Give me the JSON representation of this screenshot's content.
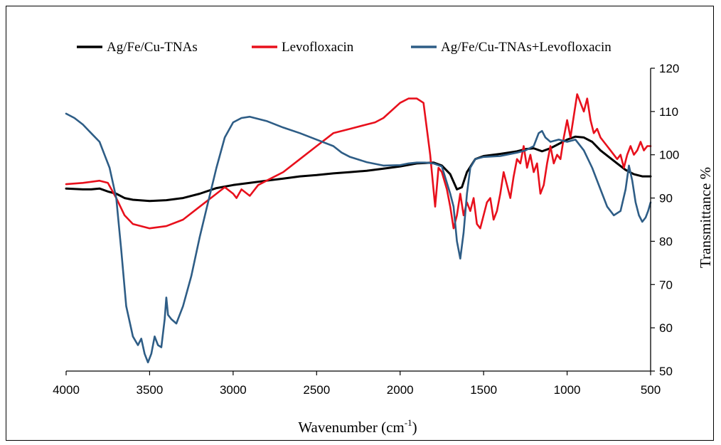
{
  "chart_data": {
    "type": "line",
    "xlabel": "Wavenumber (cm",
    "xlabel_sup": "-1",
    "xlabel_end": ")",
    "ylabel": "Transmittance %",
    "xlim": [
      4000,
      500
    ],
    "ylim": [
      50,
      120
    ],
    "x_reversed": true,
    "y_axis_side": "right",
    "xticks": [
      4000,
      3500,
      3000,
      2500,
      2000,
      1500,
      1000,
      500
    ],
    "yticks": [
      50,
      60,
      70,
      80,
      90,
      100,
      110,
      120
    ],
    "grid": false,
    "legend_position": "top",
    "series": [
      {
        "name": "Ag/Fe/Cu-TNAs",
        "color": "#000000",
        "points": [
          [
            4000,
            92.2
          ],
          [
            3900,
            92
          ],
          [
            3850,
            92
          ],
          [
            3800,
            92.2
          ],
          [
            3750,
            91.5
          ],
          [
            3700,
            91
          ],
          [
            3650,
            90
          ],
          [
            3600,
            89.6
          ],
          [
            3500,
            89.3
          ],
          [
            3400,
            89.5
          ],
          [
            3300,
            90
          ],
          [
            3200,
            91
          ],
          [
            3100,
            92.3
          ],
          [
            3000,
            93
          ],
          [
            2900,
            93.5
          ],
          [
            2800,
            94
          ],
          [
            2700,
            94.5
          ],
          [
            2600,
            95
          ],
          [
            2500,
            95.3
          ],
          [
            2400,
            95.7
          ],
          [
            2300,
            96
          ],
          [
            2200,
            96.3
          ],
          [
            2100,
            96.8
          ],
          [
            2000,
            97.3
          ],
          [
            1900,
            98
          ],
          [
            1800,
            98.2
          ],
          [
            1750,
            97.5
          ],
          [
            1700,
            95.5
          ],
          [
            1660,
            92
          ],
          [
            1630,
            92.5
          ],
          [
            1600,
            96
          ],
          [
            1550,
            99
          ],
          [
            1500,
            99.7
          ],
          [
            1400,
            100.2
          ],
          [
            1300,
            100.8
          ],
          [
            1250,
            101.3
          ],
          [
            1200,
            101.5
          ],
          [
            1150,
            100.8
          ],
          [
            1100,
            101.5
          ],
          [
            1050,
            102.5
          ],
          [
            1000,
            103.5
          ],
          [
            950,
            104.2
          ],
          [
            900,
            104
          ],
          [
            850,
            103
          ],
          [
            800,
            101
          ],
          [
            700,
            98
          ],
          [
            650,
            96.5
          ],
          [
            600,
            95.5
          ],
          [
            550,
            95
          ],
          [
            500,
            95
          ]
        ]
      },
      {
        "name": "Levofloxacin",
        "color": "#e8101c",
        "points": [
          [
            4000,
            93.2
          ],
          [
            3900,
            93.5
          ],
          [
            3800,
            94
          ],
          [
            3750,
            93.5
          ],
          [
            3700,
            90
          ],
          [
            3650,
            86
          ],
          [
            3600,
            84
          ],
          [
            3500,
            83
          ],
          [
            3400,
            83.5
          ],
          [
            3300,
            85
          ],
          [
            3200,
            88
          ],
          [
            3100,
            91
          ],
          [
            3050,
            92.5
          ],
          [
            3000,
            91
          ],
          [
            2980,
            90
          ],
          [
            2950,
            92
          ],
          [
            2900,
            90.5
          ],
          [
            2850,
            93
          ],
          [
            2800,
            94
          ],
          [
            2700,
            96
          ],
          [
            2600,
            99
          ],
          [
            2500,
            102
          ],
          [
            2400,
            105
          ],
          [
            2300,
            106
          ],
          [
            2200,
            107
          ],
          [
            2150,
            107.5
          ],
          [
            2100,
            108.5
          ],
          [
            2000,
            112
          ],
          [
            1950,
            113
          ],
          [
            1900,
            113
          ],
          [
            1860,
            112
          ],
          [
            1820,
            100
          ],
          [
            1790,
            88
          ],
          [
            1770,
            97
          ],
          [
            1750,
            96
          ],
          [
            1720,
            92
          ],
          [
            1700,
            88
          ],
          [
            1680,
            83
          ],
          [
            1660,
            86
          ],
          [
            1640,
            91
          ],
          [
            1620,
            86
          ],
          [
            1600,
            89
          ],
          [
            1580,
            87
          ],
          [
            1560,
            90
          ],
          [
            1540,
            84
          ],
          [
            1520,
            83
          ],
          [
            1500,
            86
          ],
          [
            1480,
            89
          ],
          [
            1460,
            90
          ],
          [
            1440,
            85
          ],
          [
            1420,
            87
          ],
          [
            1400,
            91
          ],
          [
            1380,
            96
          ],
          [
            1360,
            93
          ],
          [
            1340,
            90
          ],
          [
            1320,
            95
          ],
          [
            1300,
            99
          ],
          [
            1280,
            98
          ],
          [
            1260,
            102
          ],
          [
            1240,
            97
          ],
          [
            1220,
            100
          ],
          [
            1200,
            96
          ],
          [
            1180,
            98
          ],
          [
            1160,
            91
          ],
          [
            1140,
            93
          ],
          [
            1120,
            98
          ],
          [
            1100,
            102
          ],
          [
            1080,
            98
          ],
          [
            1060,
            100
          ],
          [
            1040,
            99
          ],
          [
            1020,
            104
          ],
          [
            1000,
            108
          ],
          [
            980,
            104
          ],
          [
            960,
            109
          ],
          [
            940,
            114
          ],
          [
            920,
            112
          ],
          [
            900,
            110
          ],
          [
            880,
            113
          ],
          [
            860,
            108
          ],
          [
            840,
            105
          ],
          [
            820,
            106
          ],
          [
            800,
            104
          ],
          [
            780,
            103
          ],
          [
            760,
            102
          ],
          [
            740,
            101
          ],
          [
            720,
            100
          ],
          [
            700,
            99
          ],
          [
            680,
            100
          ],
          [
            660,
            97
          ],
          [
            640,
            100
          ],
          [
            620,
            102
          ],
          [
            600,
            100
          ],
          [
            580,
            101
          ],
          [
            560,
            103
          ],
          [
            540,
            101
          ],
          [
            520,
            102
          ],
          [
            500,
            102
          ]
        ]
      },
      {
        "name": "Ag/Fe/Cu-TNAs+Levofloxacin",
        "color": "#2e5d86",
        "points": [
          [
            4000,
            109.5
          ],
          [
            3950,
            108.5
          ],
          [
            3900,
            107
          ],
          [
            3850,
            105
          ],
          [
            3800,
            103
          ],
          [
            3770,
            100
          ],
          [
            3740,
            97
          ],
          [
            3700,
            90
          ],
          [
            3670,
            78
          ],
          [
            3640,
            65
          ],
          [
            3600,
            58
          ],
          [
            3570,
            56
          ],
          [
            3550,
            57.5
          ],
          [
            3530,
            54
          ],
          [
            3510,
            52
          ],
          [
            3490,
            54
          ],
          [
            3470,
            58
          ],
          [
            3450,
            56
          ],
          [
            3430,
            55.5
          ],
          [
            3410,
            62
          ],
          [
            3400,
            67
          ],
          [
            3390,
            63
          ],
          [
            3370,
            62
          ],
          [
            3340,
            61
          ],
          [
            3300,
            65
          ],
          [
            3250,
            72
          ],
          [
            3200,
            81
          ],
          [
            3150,
            89
          ],
          [
            3100,
            97
          ],
          [
            3050,
            104
          ],
          [
            3000,
            107.5
          ],
          [
            2950,
            108.5
          ],
          [
            2900,
            108.8
          ],
          [
            2800,
            107.8
          ],
          [
            2700,
            106.3
          ],
          [
            2600,
            105
          ],
          [
            2500,
            103.5
          ],
          [
            2400,
            102
          ],
          [
            2350,
            100.5
          ],
          [
            2300,
            99.5
          ],
          [
            2200,
            98.3
          ],
          [
            2100,
            97.5
          ],
          [
            2000,
            97.6
          ],
          [
            1950,
            98
          ],
          [
            1900,
            98.2
          ],
          [
            1850,
            98.2
          ],
          [
            1800,
            98
          ],
          [
            1750,
            97.3
          ],
          [
            1700,
            91
          ],
          [
            1680,
            88
          ],
          [
            1660,
            80
          ],
          [
            1640,
            76
          ],
          [
            1620,
            82
          ],
          [
            1600,
            91
          ],
          [
            1580,
            97
          ],
          [
            1550,
            99
          ],
          [
            1500,
            99.5
          ],
          [
            1400,
            99.7
          ],
          [
            1300,
            100.5
          ],
          [
            1250,
            101
          ],
          [
            1200,
            102
          ],
          [
            1170,
            105
          ],
          [
            1150,
            105.5
          ],
          [
            1130,
            104
          ],
          [
            1100,
            103
          ],
          [
            1050,
            103.5
          ],
          [
            1000,
            103
          ],
          [
            950,
            103.5
          ],
          [
            900,
            101
          ],
          [
            850,
            97
          ],
          [
            800,
            92
          ],
          [
            760,
            88
          ],
          [
            720,
            86
          ],
          [
            680,
            87
          ],
          [
            650,
            92
          ],
          [
            630,
            97.5
          ],
          [
            610,
            94
          ],
          [
            590,
            89
          ],
          [
            570,
            86
          ],
          [
            550,
            84.5
          ],
          [
            530,
            85.5
          ],
          [
            515,
            87
          ],
          [
            500,
            89
          ]
        ]
      }
    ]
  }
}
